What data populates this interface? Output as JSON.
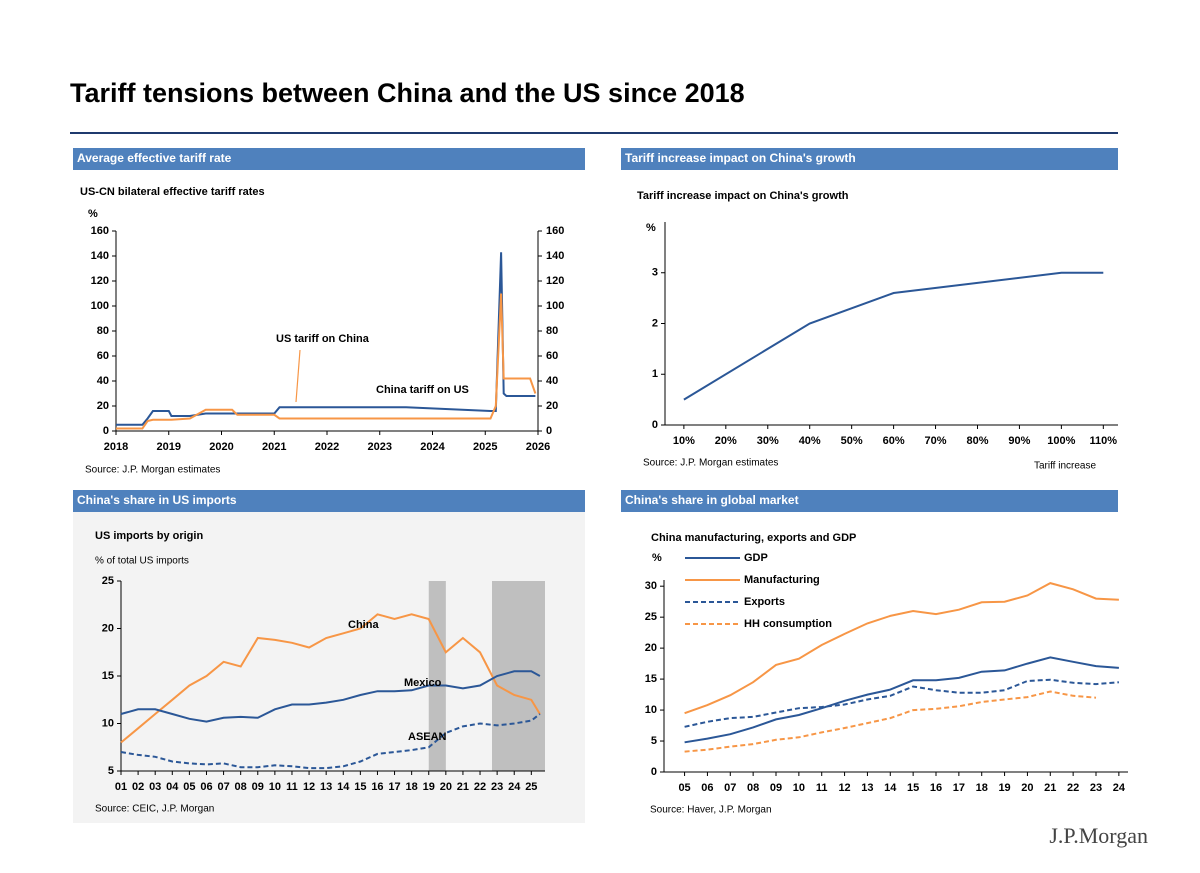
{
  "title": "Tariff tensions between China and the US since 2018",
  "logo": "J.P.Morgan",
  "chart_data": [
    {
      "type": "line",
      "section": "Average effective tariff rate",
      "title": "US-CN bilateral effective tariff rates",
      "y_label": "%",
      "source": "Source: J.P. Morgan estimates",
      "x": [
        2018,
        2018.5,
        2018.6,
        2018.7,
        2019.0,
        2019.05,
        2019.4,
        2019.7,
        2020.2,
        2020.3,
        2021.0,
        2021.1,
        2023.5,
        2025.1,
        2025.2,
        2025.3,
        2025.35,
        2025.4,
        2025.85,
        2025.95
      ],
      "xlim": [
        2018,
        2026
      ],
      "xticks": [
        2018,
        2019,
        2020,
        2021,
        2022,
        2023,
        2024,
        2025,
        2026
      ],
      "ylim": [
        0,
        160
      ],
      "yticks": [
        0,
        20,
        40,
        60,
        80,
        100,
        120,
        140,
        160
      ],
      "y2lim": [
        0,
        160
      ],
      "y2ticks": [
        0,
        20,
        40,
        60,
        80,
        100,
        120,
        140,
        160
      ],
      "series": [
        {
          "name": "US tariff on China",
          "color": "#2b5797",
          "values": [
            5,
            5,
            10,
            16,
            16,
            12,
            12,
            14,
            14,
            14,
            14,
            19,
            19,
            16,
            16,
            143,
            30,
            28,
            28,
            28
          ]
        },
        {
          "name": "China tariff on US",
          "color": "#f79646",
          "values": [
            2,
            2,
            8,
            9,
            9,
            9,
            10,
            17,
            17,
            13,
            13,
            10,
            10,
            10,
            20,
            110,
            42,
            42,
            42,
            30
          ]
        }
      ]
    },
    {
      "type": "line",
      "section": "Tariff increase impact on China's growth",
      "title": "Tariff increase impact on China's growth",
      "y_label": "%",
      "x_label": "Tariff increase",
      "source": "Source: J.P. Morgan estimates",
      "x": [
        10,
        40,
        60,
        100,
        110
      ],
      "xlim": [
        5.5,
        113.5
      ],
      "xticks": [
        {
          "value": 10,
          "label": "10%"
        },
        {
          "value": 20,
          "label": "20%"
        },
        {
          "value": 30,
          "label": "30%"
        },
        {
          "value": 40,
          "label": "40%"
        },
        {
          "value": 50,
          "label": "50%"
        },
        {
          "value": 60,
          "label": "60%"
        },
        {
          "value": 70,
          "label": "70%"
        },
        {
          "value": 80,
          "label": "80%"
        },
        {
          "value": 90,
          "label": "90%"
        },
        {
          "value": 100,
          "label": "100%"
        },
        {
          "value": 110,
          "label": "110%"
        }
      ],
      "ylim": [
        0,
        4
      ],
      "yticks": [
        0,
        1,
        2,
        3
      ],
      "series": [
        {
          "name": "Impact",
          "color": "#2b5797",
          "values": [
            0.5,
            2.0,
            2.6,
            3.0,
            3.0
          ]
        }
      ]
    },
    {
      "type": "line",
      "section": "China's share in US imports",
      "title": "US imports by origin",
      "subtitle": "% of total US imports",
      "source": "Source: CEIC, J.P. Morgan",
      "x": [
        2001,
        2002,
        2003,
        2004,
        2005,
        2006,
        2007,
        2008,
        2009,
        2010,
        2011,
        2012,
        2013,
        2014,
        2015,
        2016,
        2017,
        2018,
        2019,
        2020,
        2021,
        2022,
        2023,
        2024,
        2025,
        2025.5
      ],
      "xlim": [
        2001,
        2025.8
      ],
      "xticks": [
        {
          "value": 2001,
          "label": "01"
        },
        {
          "value": 2002,
          "label": "02"
        },
        {
          "value": 2003,
          "label": "03"
        },
        {
          "value": 2004,
          "label": "04"
        },
        {
          "value": 2005,
          "label": "05"
        },
        {
          "value": 2006,
          "label": "06"
        },
        {
          "value": 2007,
          "label": "07"
        },
        {
          "value": 2008,
          "label": "08"
        },
        {
          "value": 2009,
          "label": "09"
        },
        {
          "value": 2010,
          "label": "10"
        },
        {
          "value": 2011,
          "label": "11"
        },
        {
          "value": 2012,
          "label": "12"
        },
        {
          "value": 2013,
          "label": "13"
        },
        {
          "value": 2014,
          "label": "14"
        },
        {
          "value": 2015,
          "label": "15"
        },
        {
          "value": 2016,
          "label": "16"
        },
        {
          "value": 2017,
          "label": "17"
        },
        {
          "value": 2018,
          "label": "18"
        },
        {
          "value": 2019,
          "label": "19"
        },
        {
          "value": 2020,
          "label": "20"
        },
        {
          "value": 2021,
          "label": "21"
        },
        {
          "value": 2022,
          "label": "22"
        },
        {
          "value": 2023,
          "label": "23"
        },
        {
          "value": 2024,
          "label": "24"
        },
        {
          "value": 2025,
          "label": "25"
        }
      ],
      "ylim": [
        5,
        25
      ],
      "yticks": [
        5,
        10,
        15,
        20,
        25
      ],
      "shaded": [
        [
          2019,
          2020
        ],
        [
          2022.7,
          2025.8
        ]
      ],
      "series": [
        {
          "name": "China",
          "color": "#f79646",
          "values": [
            8,
            9.5,
            11,
            12.5,
            14,
            15,
            16.5,
            16,
            19,
            18.8,
            18.5,
            18,
            19,
            19.5,
            20,
            21.5,
            21,
            21.5,
            21,
            17.5,
            19,
            17.5,
            14,
            13,
            12.5,
            11
          ]
        },
        {
          "name": "Mexico",
          "color": "#2b5797",
          "values": [
            11,
            11.5,
            11.5,
            11,
            10.5,
            10.2,
            10.6,
            10.7,
            10.6,
            11.5,
            12,
            12,
            12.2,
            12.5,
            13,
            13.4,
            13.4,
            13.5,
            14,
            14,
            13.7,
            14,
            15,
            15.5,
            15.5,
            15
          ]
        },
        {
          "name": "ASEAN",
          "color": "#2b5797",
          "dash": true,
          "values": [
            7,
            6.7,
            6.5,
            6,
            5.8,
            5.7,
            5.8,
            5.4,
            5.4,
            5.6,
            5.5,
            5.3,
            5.3,
            5.5,
            6,
            6.8,
            7,
            7.2,
            7.5,
            9,
            9.7,
            10,
            9.8,
            10,
            10.3,
            11
          ]
        }
      ]
    },
    {
      "type": "line",
      "section": "China's share in global market",
      "title": "China manufacturing, exports and GDP",
      "y_label": "%",
      "source": "Source: Haver, J.P. Morgan",
      "legend": "top-left",
      "x": [
        2005,
        2006,
        2007,
        2008,
        2009,
        2010,
        2011,
        2012,
        2013,
        2014,
        2015,
        2016,
        2017,
        2018,
        2019,
        2020,
        2021,
        2022,
        2023,
        2024
      ],
      "xlim": [
        2004.1,
        2024.4
      ],
      "xticks": [
        {
          "value": 2005,
          "label": "05"
        },
        {
          "value": 2006,
          "label": "06"
        },
        {
          "value": 2007,
          "label": "07"
        },
        {
          "value": 2008,
          "label": "08"
        },
        {
          "value": 2009,
          "label": "09"
        },
        {
          "value": 2010,
          "label": "10"
        },
        {
          "value": 2011,
          "label": "11"
        },
        {
          "value": 2012,
          "label": "12"
        },
        {
          "value": 2013,
          "label": "13"
        },
        {
          "value": 2014,
          "label": "14"
        },
        {
          "value": 2015,
          "label": "15"
        },
        {
          "value": 2016,
          "label": "16"
        },
        {
          "value": 2017,
          "label": "17"
        },
        {
          "value": 2018,
          "label": "18"
        },
        {
          "value": 2019,
          "label": "19"
        },
        {
          "value": 2020,
          "label": "20"
        },
        {
          "value": 2021,
          "label": "21"
        },
        {
          "value": 2022,
          "label": "22"
        },
        {
          "value": 2023,
          "label": "23"
        },
        {
          "value": 2024,
          "label": "24"
        }
      ],
      "ylim": [
        0,
        31
      ],
      "yticks": [
        0,
        5,
        10,
        15,
        20,
        25,
        30
      ],
      "series": [
        {
          "name": "GDP",
          "color": "#2b5797",
          "values": [
            4.8,
            5.4,
            6.1,
            7.2,
            8.5,
            9.2,
            10.3,
            11.5,
            12.5,
            13.3,
            14.8,
            14.8,
            15.2,
            16.2,
            16.4,
            17.5,
            18.5,
            17.8,
            17.1,
            16.8
          ]
        },
        {
          "name": "Manufacturing",
          "color": "#f79646",
          "values": [
            9.5,
            10.8,
            12.4,
            14.5,
            17.3,
            18.3,
            20.5,
            22.3,
            24,
            25.2,
            26,
            25.5,
            26.2,
            27.4,
            27.5,
            28.5,
            30.5,
            29.5,
            28,
            27.8
          ]
        },
        {
          "name": "Exports",
          "color": "#2b5797",
          "dash": true,
          "values": [
            7.3,
            8.1,
            8.7,
            8.9,
            9.6,
            10.3,
            10.5,
            10.9,
            11.7,
            12.3,
            13.8,
            13.2,
            12.8,
            12.8,
            13.2,
            14.7,
            14.9,
            14.4,
            14.2,
            14.5
          ]
        },
        {
          "name": "HH consumption",
          "color": "#f79646",
          "dash": true,
          "values": [
            3.3,
            3.6,
            4.1,
            4.5,
            5.2,
            5.6,
            6.4,
            7.1,
            7.9,
            8.7,
            10,
            10.2,
            10.6,
            11.3,
            11.7,
            12.1,
            13,
            12.3,
            12,
            null
          ]
        }
      ]
    }
  ]
}
